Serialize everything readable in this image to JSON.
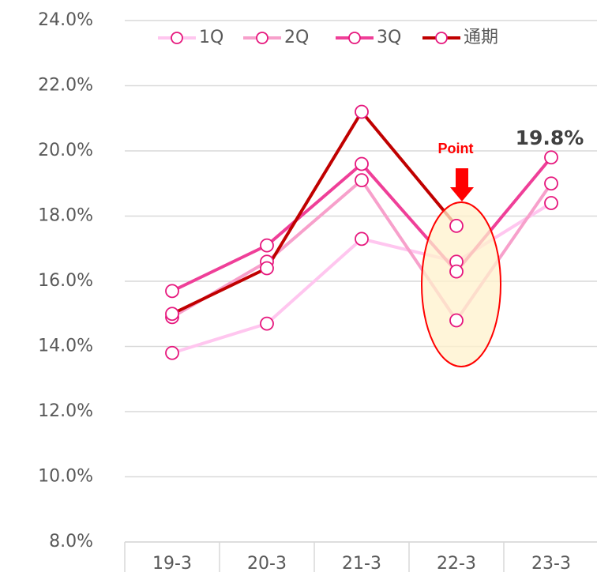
{
  "chart_data": {
    "type": "line",
    "categories": [
      "19-3",
      "20-3",
      "21-3",
      "22-3",
      "23-3"
    ],
    "series": [
      {
        "name": "1Q",
        "color": "#ffc6ef",
        "values": [
          13.8,
          14.7,
          17.3,
          16.6,
          18.4
        ]
      },
      {
        "name": "2Q",
        "color": "#f7a0cb",
        "values": [
          14.9,
          16.6,
          19.1,
          14.8,
          19.0
        ]
      },
      {
        "name": "3Q",
        "color": "#ef3f98",
        "values": [
          15.7,
          17.1,
          19.6,
          16.3,
          19.8
        ]
      },
      {
        "name": "通期",
        "color": "#c00000",
        "values": [
          15.0,
          16.4,
          21.2,
          17.7,
          null
        ]
      }
    ],
    "ylim": [
      8,
      24
    ],
    "yticks": [
      {
        "value": 8,
        "label": "8.0%"
      },
      {
        "value": 10,
        "label": "10.0%"
      },
      {
        "value": 12,
        "label": "12.0%"
      },
      {
        "value": 14,
        "label": "14.0%"
      },
      {
        "value": 16,
        "label": "16.0%"
      },
      {
        "value": 18,
        "label": "18.0%"
      },
      {
        "value": 20,
        "label": "20.0%"
      },
      {
        "value": 22,
        "label": "22.0%"
      },
      {
        "value": 24,
        "label": "24.0%"
      }
    ],
    "grid": true,
    "legend": "top",
    "marker_color": "#e6177d",
    "annotations": [
      "19.8%",
      "Point"
    ]
  }
}
